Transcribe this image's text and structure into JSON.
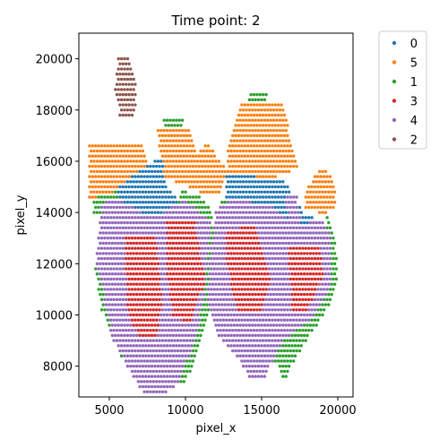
{
  "chart_data": {
    "type": "scatter",
    "title": "Time point: 2",
    "xlabel": "pixel_x",
    "ylabel": "pixel_y",
    "xlim": [
      3000,
      21000
    ],
    "ylim": [
      6800,
      21000
    ],
    "xticks": [
      5000,
      10000,
      15000,
      20000
    ],
    "yticks": [
      8000,
      10000,
      12000,
      14000,
      16000,
      18000,
      20000
    ],
    "grid": false,
    "legend_position": "outside-right",
    "spot_spacing_x": 200,
    "spot_spacing_y": 200,
    "series": [
      {
        "name": "0",
        "color": "#1f77b4"
      },
      {
        "name": "5",
        "color": "#ff7f0e"
      },
      {
        "name": "1",
        "color": "#2ca02c"
      },
      {
        "name": "3",
        "color": "#d62728"
      },
      {
        "name": "4",
        "color": "#9467bd"
      },
      {
        "name": "2",
        "color": "#8c564b"
      }
    ],
    "regions": {
      "2": [
        [
          5600,
          20200,
          6200,
          20200,
          6800,
          18900,
          6700,
          17800,
          5700,
          17800,
          5400,
          18800
        ]
      ],
      "5": [
        [
          3700,
          16800,
          7000,
          16800,
          7600,
          15800,
          6400,
          15000,
          3700,
          14500
        ],
        [
          8100,
          17400,
          10200,
          17400,
          10800,
          16300,
          11400,
          16800,
          12800,
          15600,
          12300,
          14600,
          11000,
          14800,
          8600,
          15400
        ],
        [
          12800,
          16600,
          13800,
          18400,
          16300,
          18400,
          17400,
          15700,
          15000,
          15200,
          12700,
          15000
        ],
        [
          17800,
          14700,
          18800,
          15800,
          19700,
          15400,
          19900,
          14300,
          19200,
          13900,
          17900,
          14200
        ]
      ],
      "0": [
        [
          5600,
          15000,
          7400,
          15800,
          8400,
          16200,
          8800,
          15000,
          9600,
          14400,
          8000,
          13600,
          5600,
          14300
        ],
        [
          12700,
          15600,
          16500,
          15200,
          17800,
          14000,
          18800,
          13700,
          18400,
          12900,
          14600,
          13600,
          12700,
          14100
        ]
      ],
      "3": [
        [
          6000,
          13200,
          8000,
          13200,
          8500,
          10300,
          8000,
          9100,
          6900,
          9100,
          6200,
          10200
        ],
        [
          8800,
          13700,
          10600,
          13700,
          11300,
          11300,
          10300,
          9700,
          9200,
          9900,
          8800,
          11600
        ],
        [
          12700,
          13200,
          14600,
          13600,
          15600,
          11600,
          15000,
          10200,
          13400,
          10000,
          12700,
          12000
        ],
        [
          16700,
          12800,
          18800,
          12800,
          19100,
          11600,
          18000,
          10200,
          17000,
          10200
        ]
      ],
      "4": [
        [
          4500,
          14300,
          5300,
          14600,
          7800,
          13800,
          10000,
          14500,
          11700,
          13600,
          11300,
          11000,
          10800,
          9400,
          10100,
          8200,
          9700,
          7400,
          8900,
          7000,
          7200,
          7000,
          6200,
          8000,
          5200,
          9100,
          4700,
          10600,
          4100,
          12100
        ],
        [
          12000,
          14100,
          13000,
          14500,
          15600,
          14300,
          17100,
          13500,
          19100,
          13700,
          19600,
          12900,
          19500,
          11100,
          18400,
          9900,
          16400,
          9000,
          15600,
          8000,
          15100,
          7400,
          14100,
          7600,
          13400,
          8400,
          12000,
          9300,
          11400,
          10600,
          11700,
          12700
        ],
        [
          16500,
          14700,
          16800,
          13400,
          17600,
          13500,
          17300,
          14700
        ]
      ],
      "1": [
        [
          4100,
          15400,
          5600,
          15600,
          5800,
          14400,
          4600,
          13400,
          4000,
          11900,
          4500,
          10200,
          5500,
          8700,
          6800,
          7400,
          8400,
          6900,
          10000,
          7400,
          10700,
          8300,
          11400,
          9900,
          11900,
          11300,
          12000,
          12900,
          11600,
          14300,
          10700,
          14700,
          9700,
          14900,
          9400,
          14200,
          8700,
          13400,
          7900,
          13500,
          5500,
          13700,
          3900,
          14000
        ],
        [
          8300,
          15700,
          8600,
          17800,
          10000,
          17800,
          8900,
          16200
        ],
        [
          11500,
          16500,
          12600,
          15500,
          12200,
          14800,
          11300,
          14900,
          10800,
          15600
        ],
        [
          13000,
          16900,
          14400,
          18800,
          15600,
          18800,
          14500,
          16700,
          13200,
          15600
        ],
        [
          11700,
          13000,
          12400,
          14400,
          14000,
          14600,
          13500,
          12900,
          12700,
          11400
        ],
        [
          15700,
          8400,
          16500,
          7400,
          17200,
          8300,
          19400,
          10300,
          20000,
          11600,
          19800,
          13100,
          19300,
          13900,
          19000,
          12800,
          18400,
          11300,
          17200,
          9900
        ]
      ]
    },
    "draw_order": [
      "1",
      "5",
      "0",
      "4",
      "3",
      "2"
    ]
  }
}
